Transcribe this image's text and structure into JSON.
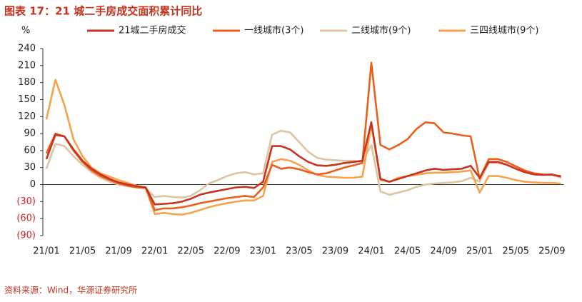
{
  "chart_data": {
    "type": "line",
    "title": "图表 17：21 城二手房成交面积累计同比",
    "y_label": "%",
    "source": "资料来源：Wind，华源证券研究所",
    "categories": [
      "21/01",
      null,
      null,
      null,
      "21/05",
      null,
      null,
      null,
      "21/09",
      null,
      null,
      null,
      "22/01",
      null,
      null,
      null,
      "22/05",
      null,
      null,
      null,
      "22/09",
      null,
      null,
      null,
      "23/01",
      null,
      null,
      null,
      "23/05",
      null,
      null,
      null,
      "23/09",
      null,
      null,
      null,
      "24/01",
      null,
      null,
      null,
      "24/05",
      null,
      null,
      null,
      "24/09",
      null,
      null,
      null,
      "25/01",
      null,
      null,
      null,
      "25/05",
      null,
      null,
      null,
      "25/09",
      null
    ],
    "ylim": [
      -90,
      240
    ],
    "yticks": [
      {
        "value": -90,
        "label": "(90)"
      },
      {
        "value": -60,
        "label": "(60)"
      },
      {
        "value": -30,
        "label": "(30)"
      },
      0,
      30,
      60,
      90,
      120,
      150,
      180,
      210,
      240
    ],
    "negative_tick_color": "#e02020",
    "series": [
      {
        "name": "21城二手房成交",
        "color": "#c9321f",
        "values": [
          45,
          88,
          85,
          62,
          42,
          28,
          18,
          10,
          4,
          0,
          -3,
          -5,
          -35,
          -34,
          -33,
          -30,
          -25,
          -18,
          -14,
          -11,
          -8,
          -5,
          -4,
          -6,
          5,
          68,
          68,
          62,
          50,
          40,
          34,
          33,
          35,
          38,
          40,
          42,
          110,
          10,
          5,
          10,
          15,
          20,
          25,
          28,
          26,
          27,
          28,
          33,
          12,
          40,
          40,
          35,
          28,
          22,
          18,
          17,
          18,
          14
        ]
      },
      {
        "name": "一线城市(3个)",
        "color": "#ec5f1a",
        "values": [
          55,
          90,
          85,
          60,
          40,
          25,
          15,
          8,
          2,
          -2,
          -5,
          -6,
          -45,
          -42,
          -42,
          -40,
          -37,
          -33,
          -30,
          -27,
          -24,
          -22,
          -20,
          -22,
          -5,
          35,
          28,
          30,
          27,
          22,
          18,
          20,
          25,
          30,
          34,
          38,
          215,
          70,
          62,
          70,
          80,
          98,
          110,
          108,
          92,
          90,
          87,
          85,
          10,
          45,
          45,
          40,
          32,
          25,
          20,
          18,
          17,
          15
        ]
      },
      {
        "name": "二线城市(9个)",
        "color": "#dcc5a3",
        "values": [
          28,
          72,
          68,
          50,
          35,
          22,
          12,
          5,
          0,
          -3,
          -5,
          -6,
          -22,
          -20,
          -22,
          -23,
          -20,
          -10,
          2,
          8,
          15,
          20,
          22,
          18,
          20,
          88,
          95,
          92,
          75,
          58,
          47,
          44,
          43,
          42,
          42,
          40,
          70,
          -12,
          -18,
          -14,
          -10,
          -4,
          0,
          2,
          3,
          4,
          6,
          12,
          5,
          38,
          38,
          35,
          28,
          22,
          18,
          17,
          18,
          12
        ]
      },
      {
        "name": "三四线城市(9个)",
        "color": "#f7a24c",
        "values": [
          115,
          185,
          140,
          80,
          50,
          30,
          20,
          14,
          8,
          3,
          -2,
          -5,
          -52,
          -50,
          -52,
          -53,
          -50,
          -45,
          -40,
          -36,
          -33,
          -30,
          -28,
          -28,
          -20,
          40,
          45,
          42,
          35,
          25,
          17,
          14,
          13,
          12,
          12,
          14,
          105,
          8,
          5,
          12,
          15,
          17,
          20,
          21,
          21,
          22,
          23,
          25,
          -14,
          15,
          15,
          12,
          8,
          5,
          4,
          3,
          3,
          2
        ]
      }
    ]
  }
}
